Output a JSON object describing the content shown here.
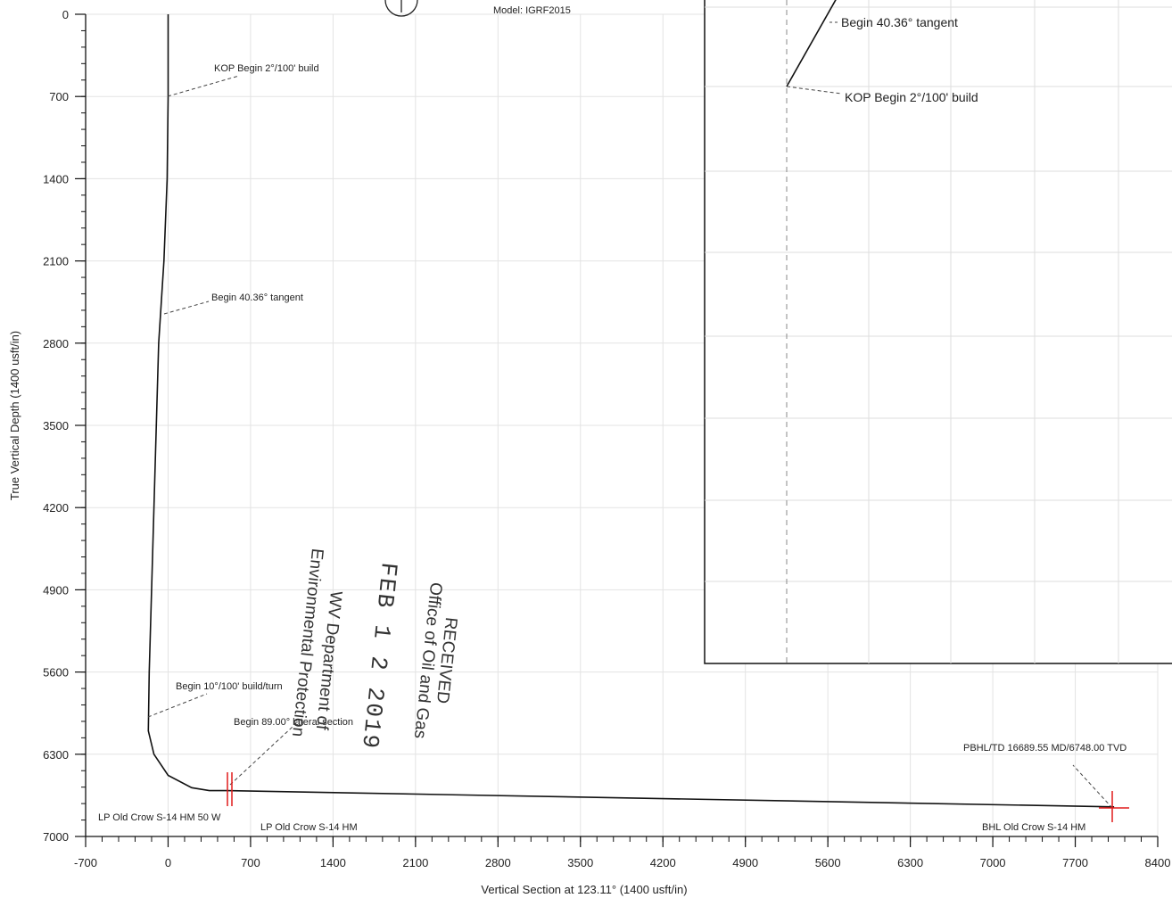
{
  "chart_data": {
    "type": "line",
    "title": "",
    "header_text": "Model: IGRF2015",
    "xlabel": "Vertical Section at 123.11° (1400 usft/in)",
    "ylabel": "True Vertical Depth (1400 usft/in)",
    "xlim": [
      -700,
      8400
    ],
    "ylim": [
      7000,
      0
    ],
    "x_ticks": [
      "-700",
      "0",
      "700",
      "1400",
      "2100",
      "2800",
      "3500",
      "4200",
      "4900",
      "5600",
      "6300",
      "7000",
      "7700",
      "8400"
    ],
    "y_ticks": [
      "0",
      "700",
      "1400",
      "2100",
      "2800",
      "3500",
      "4200",
      "4900",
      "5600",
      "6300",
      "7000"
    ],
    "grid": true,
    "series": [
      {
        "x": [
          0,
          0,
          -8,
          -35,
          -80,
          -160,
          -168,
          -120,
          0,
          200,
          350,
          500,
          8030
        ],
        "y": [
          0,
          700,
          1400,
          2100,
          2800,
          5600,
          6100,
          6300,
          6480,
          6585,
          6610,
          6610,
          6748
        ]
      }
    ],
    "annotations": [
      {
        "text": "KOP Begin 2°/100' build",
        "x": 0,
        "y": 700
      },
      {
        "text": "Begin 40.36° tangent",
        "x": -8,
        "y": 2650
      },
      {
        "text": "Begin 10°/100' build/turn",
        "x": -160,
        "y": 6040
      },
      {
        "text": "Begin 89.00° lateral section",
        "x": 520,
        "y": 6600
      },
      {
        "text": "LP Old Crow S-14 HM 50 W",
        "x": 520,
        "y": 6610
      },
      {
        "text": "LP Old Crow S-14 HM",
        "x": 550,
        "y": 6610
      },
      {
        "text": "PBHL/TD 16689.55 MD/6748.00 TVD",
        "x": 8030,
        "y": 6748
      },
      {
        "text": "BHL Old Crow S-14 HM",
        "x": 8030,
        "y": 6748
      }
    ],
    "inset": {
      "annotations": [
        "Begin 40.36° tangent",
        "KOP Begin 2°/100' build"
      ]
    }
  },
  "stamp": {
    "line1": "RECEIVED",
    "line2": "Office of Oil and Gas",
    "date": "FEB 1 2 2019",
    "line3": "WV Department of",
    "line4": "Environmental Protection"
  }
}
